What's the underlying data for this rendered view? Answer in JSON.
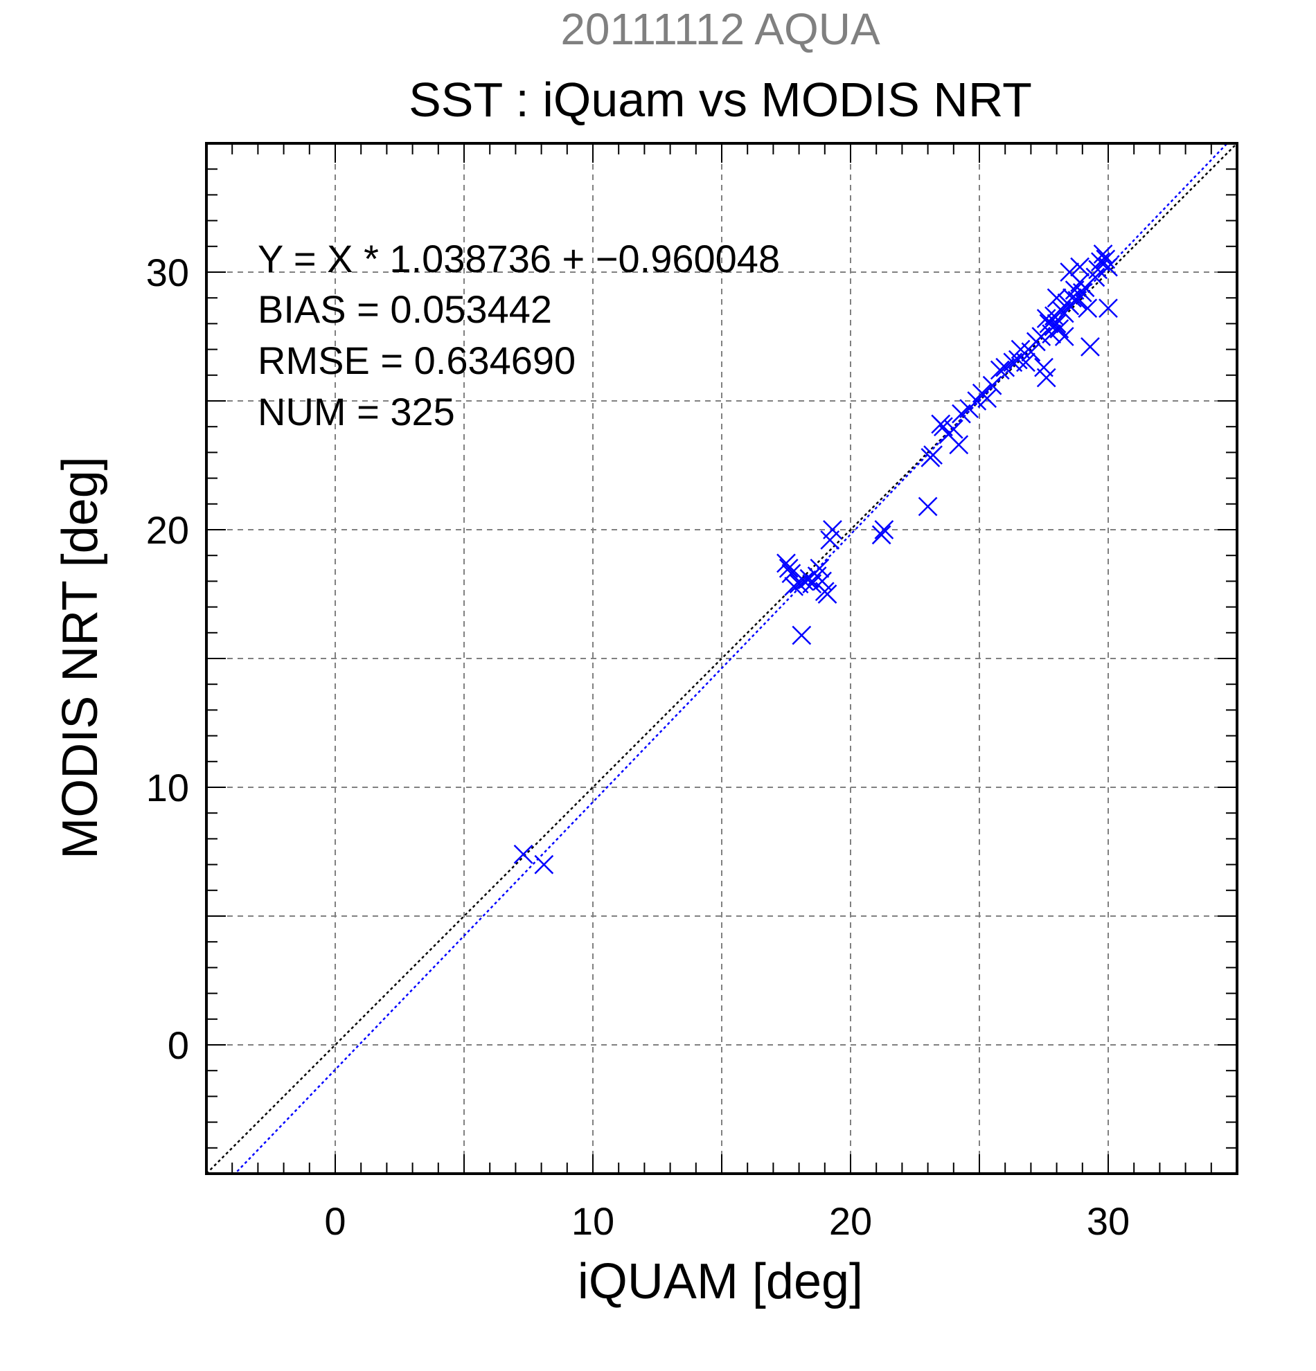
{
  "header": {
    "top_title": "20111112 AQUA",
    "title": "SST : iQuam vs MODIS NRT"
  },
  "stats": {
    "line1": "Y = X * 1.038736 + −0.960048",
    "line2": "BIAS = 0.053442",
    "line3": "RMSE = 0.634690",
    "line4": "NUM = 325"
  },
  "colors": {
    "points": "#0000ff",
    "one_to_one_line": "#000000",
    "fit_line": "#0000ff",
    "grid": "#808080",
    "top_title": "#808080"
  },
  "chart_data": {
    "type": "scatter",
    "title": "SST : iQuam vs MODIS NRT",
    "xlabel": "iQUAM [deg]",
    "ylabel": "MODIS NRT [deg]",
    "xlim": [
      -5,
      35
    ],
    "ylim": [
      -5,
      35
    ],
    "xticks": [
      0,
      10,
      20,
      30
    ],
    "yticks": [
      0,
      10,
      20,
      30
    ],
    "xtick_labels": [
      "0",
      "10",
      "20",
      "30"
    ],
    "ytick_labels": [
      "0",
      "10",
      "20",
      "30"
    ],
    "grid": true,
    "marker": "x",
    "lines": [
      {
        "kind": "1:1",
        "slope": 1.0,
        "intercept": 0.0,
        "style": "dotted",
        "color": "#000000"
      },
      {
        "kind": "fit",
        "slope": 1.038736,
        "intercept": -0.960048,
        "style": "dotted",
        "color": "#0000ff"
      }
    ],
    "series": [
      {
        "points": [
          [
            7.3,
            7.4
          ],
          [
            8.1,
            7.0
          ],
          [
            17.5,
            18.7
          ],
          [
            17.6,
            18.5
          ],
          [
            17.7,
            18.3
          ],
          [
            17.8,
            17.8
          ],
          [
            18.0,
            17.9
          ],
          [
            18.2,
            18.0
          ],
          [
            18.4,
            18.1
          ],
          [
            18.5,
            17.9
          ],
          [
            18.7,
            18.2
          ],
          [
            18.8,
            18.5
          ],
          [
            18.9,
            18.0
          ],
          [
            19.0,
            17.6
          ],
          [
            19.1,
            17.5
          ],
          [
            18.1,
            15.9
          ],
          [
            19.2,
            19.6
          ],
          [
            19.3,
            20.0
          ],
          [
            21.2,
            19.8
          ],
          [
            21.3,
            20.0
          ],
          [
            23.0,
            20.9
          ],
          [
            23.1,
            22.8
          ],
          [
            23.2,
            22.9
          ],
          [
            23.5,
            24.1
          ],
          [
            23.6,
            24.0
          ],
          [
            23.8,
            23.7
          ],
          [
            24.0,
            23.9
          ],
          [
            24.2,
            23.3
          ],
          [
            24.3,
            24.5
          ],
          [
            24.6,
            24.7
          ],
          [
            24.9,
            25.0
          ],
          [
            25.1,
            25.3
          ],
          [
            25.3,
            25.1
          ],
          [
            25.5,
            25.6
          ],
          [
            25.8,
            26.2
          ],
          [
            26.0,
            26.3
          ],
          [
            26.3,
            26.5
          ],
          [
            26.5,
            26.6
          ],
          [
            26.6,
            27.0
          ],
          [
            26.8,
            26.5
          ],
          [
            27.0,
            26.9
          ],
          [
            27.2,
            27.3
          ],
          [
            27.4,
            27.5
          ],
          [
            27.5,
            26.3
          ],
          [
            27.6,
            25.9
          ],
          [
            27.7,
            28.0
          ],
          [
            27.8,
            27.6
          ],
          [
            27.9,
            28.3
          ],
          [
            28.0,
            28.0
          ],
          [
            28.1,
            27.8
          ],
          [
            28.2,
            28.5
          ],
          [
            28.3,
            28.4
          ],
          [
            28.4,
            28.8
          ],
          [
            28.5,
            28.7
          ],
          [
            28.6,
            29.0
          ],
          [
            28.7,
            29.3
          ],
          [
            28.8,
            28.9
          ],
          [
            28.9,
            29.6
          ],
          [
            29.0,
            29.2
          ],
          [
            29.1,
            29.4
          ],
          [
            29.2,
            28.6
          ],
          [
            29.3,
            27.1
          ],
          [
            28.5,
            30.0
          ],
          [
            28.9,
            30.2
          ],
          [
            29.6,
            30.1
          ],
          [
            29.7,
            30.4
          ],
          [
            29.8,
            30.7
          ],
          [
            29.9,
            30.5
          ],
          [
            30.0,
            30.2
          ],
          [
            30.0,
            28.6
          ],
          [
            29.5,
            29.8
          ],
          [
            28.0,
            29.0
          ],
          [
            27.6,
            28.2
          ],
          [
            28.3,
            27.5
          ],
          [
            27.9,
            27.9
          ]
        ]
      }
    ]
  }
}
